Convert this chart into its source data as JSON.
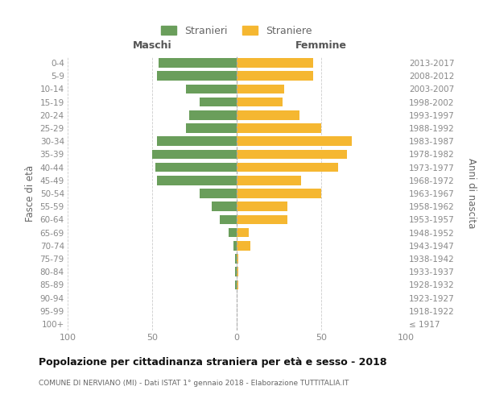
{
  "age_groups": [
    "100+",
    "95-99",
    "90-94",
    "85-89",
    "80-84",
    "75-79",
    "70-74",
    "65-69",
    "60-64",
    "55-59",
    "50-54",
    "45-49",
    "40-44",
    "35-39",
    "30-34",
    "25-29",
    "20-24",
    "15-19",
    "10-14",
    "5-9",
    "0-4"
  ],
  "birth_years": [
    "≤ 1917",
    "1918-1922",
    "1923-1927",
    "1928-1932",
    "1933-1937",
    "1938-1942",
    "1943-1947",
    "1948-1952",
    "1953-1957",
    "1958-1962",
    "1963-1967",
    "1968-1972",
    "1973-1977",
    "1978-1982",
    "1983-1987",
    "1988-1992",
    "1993-1997",
    "1998-2002",
    "2003-2007",
    "2008-2012",
    "2013-2017"
  ],
  "males": [
    0,
    0,
    0,
    1,
    1,
    1,
    2,
    5,
    10,
    15,
    22,
    47,
    48,
    50,
    47,
    30,
    28,
    22,
    30,
    47,
    46
  ],
  "females": [
    0,
    0,
    0,
    1,
    1,
    1,
    8,
    7,
    30,
    30,
    50,
    38,
    60,
    65,
    68,
    50,
    37,
    27,
    28,
    45,
    45
  ],
  "male_color": "#6a9e5b",
  "female_color": "#f5b731",
  "grid_color": "#cccccc",
  "center_line_color": "#aaaaaa",
  "title": "Popolazione per cittadinanza straniera per età e sesso - 2018",
  "subtitle": "COMUNE DI NERVIANO (MI) - Dati ISTAT 1° gennaio 2018 - Elaborazione TUTTITALIA.IT",
  "ylabel_left": "Fasce di età",
  "ylabel_right": "Anni di nascita",
  "legend_male": "Stranieri",
  "legend_female": "Straniere",
  "xlim": 100,
  "header_maschi": "Maschi",
  "header_femmine": "Femmine",
  "tick_color": "#888888",
  "label_color": "#666666",
  "header_color": "#555555",
  "title_color": "#111111",
  "subtitle_color": "#666666"
}
